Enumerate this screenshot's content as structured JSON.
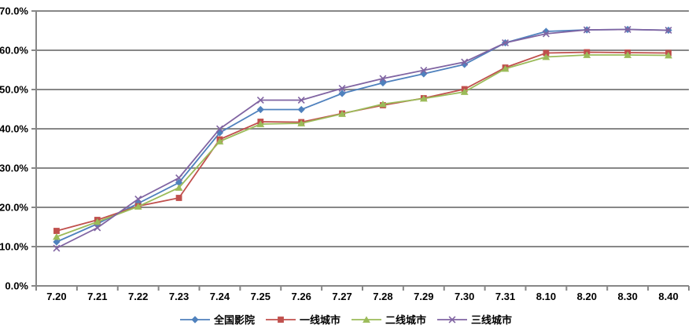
{
  "chart_data": {
    "type": "line",
    "title": "",
    "xlabel": "",
    "ylabel": "",
    "categories": [
      "7.20",
      "7.21",
      "7.22",
      "7.23",
      "7.24",
      "7.25",
      "7.26",
      "7.27",
      "7.28",
      "7.29",
      "7.30",
      "7.31",
      "8.10",
      "8.20",
      "8.30",
      "8.40"
    ],
    "series": [
      {
        "name": "全国影院",
        "color": "#4F81BD",
        "marker": "diamond",
        "values": [
          11.2,
          15.8,
          21.0,
          26.3,
          39.0,
          44.9,
          44.9,
          49.0,
          51.7,
          54.0,
          56.4,
          61.9,
          64.8,
          65.2,
          65.3,
          65.1
        ]
      },
      {
        "name": "一线城市",
        "color": "#C0504D",
        "marker": "square",
        "values": [
          14.0,
          16.8,
          20.3,
          22.4,
          37.3,
          41.8,
          41.7,
          43.9,
          46.0,
          47.8,
          50.1,
          55.6,
          59.3,
          59.5,
          59.4,
          59.3
        ]
      },
      {
        "name": "二线城市",
        "color": "#9BBB59",
        "marker": "triangle",
        "values": [
          12.5,
          16.3,
          20.2,
          25.0,
          36.8,
          41.2,
          41.4,
          43.8,
          46.3,
          47.7,
          49.4,
          55.3,
          58.3,
          58.8,
          58.8,
          58.7
        ]
      },
      {
        "name": "三线城市",
        "color": "#8064A2",
        "marker": "x",
        "values": [
          9.6,
          14.8,
          22.1,
          27.5,
          40.0,
          47.3,
          47.3,
          50.3,
          52.8,
          54.9,
          57.0,
          61.9,
          64.2,
          65.2,
          65.3,
          65.1
        ]
      }
    ],
    "ylim": [
      0,
      70
    ],
    "ytick_step": 10,
    "ytick_labels": [
      "0.0%",
      "10.0%",
      "20.0%",
      "30.0%",
      "40.0%",
      "50.0%",
      "60.0%",
      "70.0%"
    ],
    "grid": true,
    "legend_position": "bottom",
    "colors": {
      "grid": "#878787",
      "axis": "#878787",
      "text": "#000000",
      "background": "#FFFFFF"
    }
  }
}
